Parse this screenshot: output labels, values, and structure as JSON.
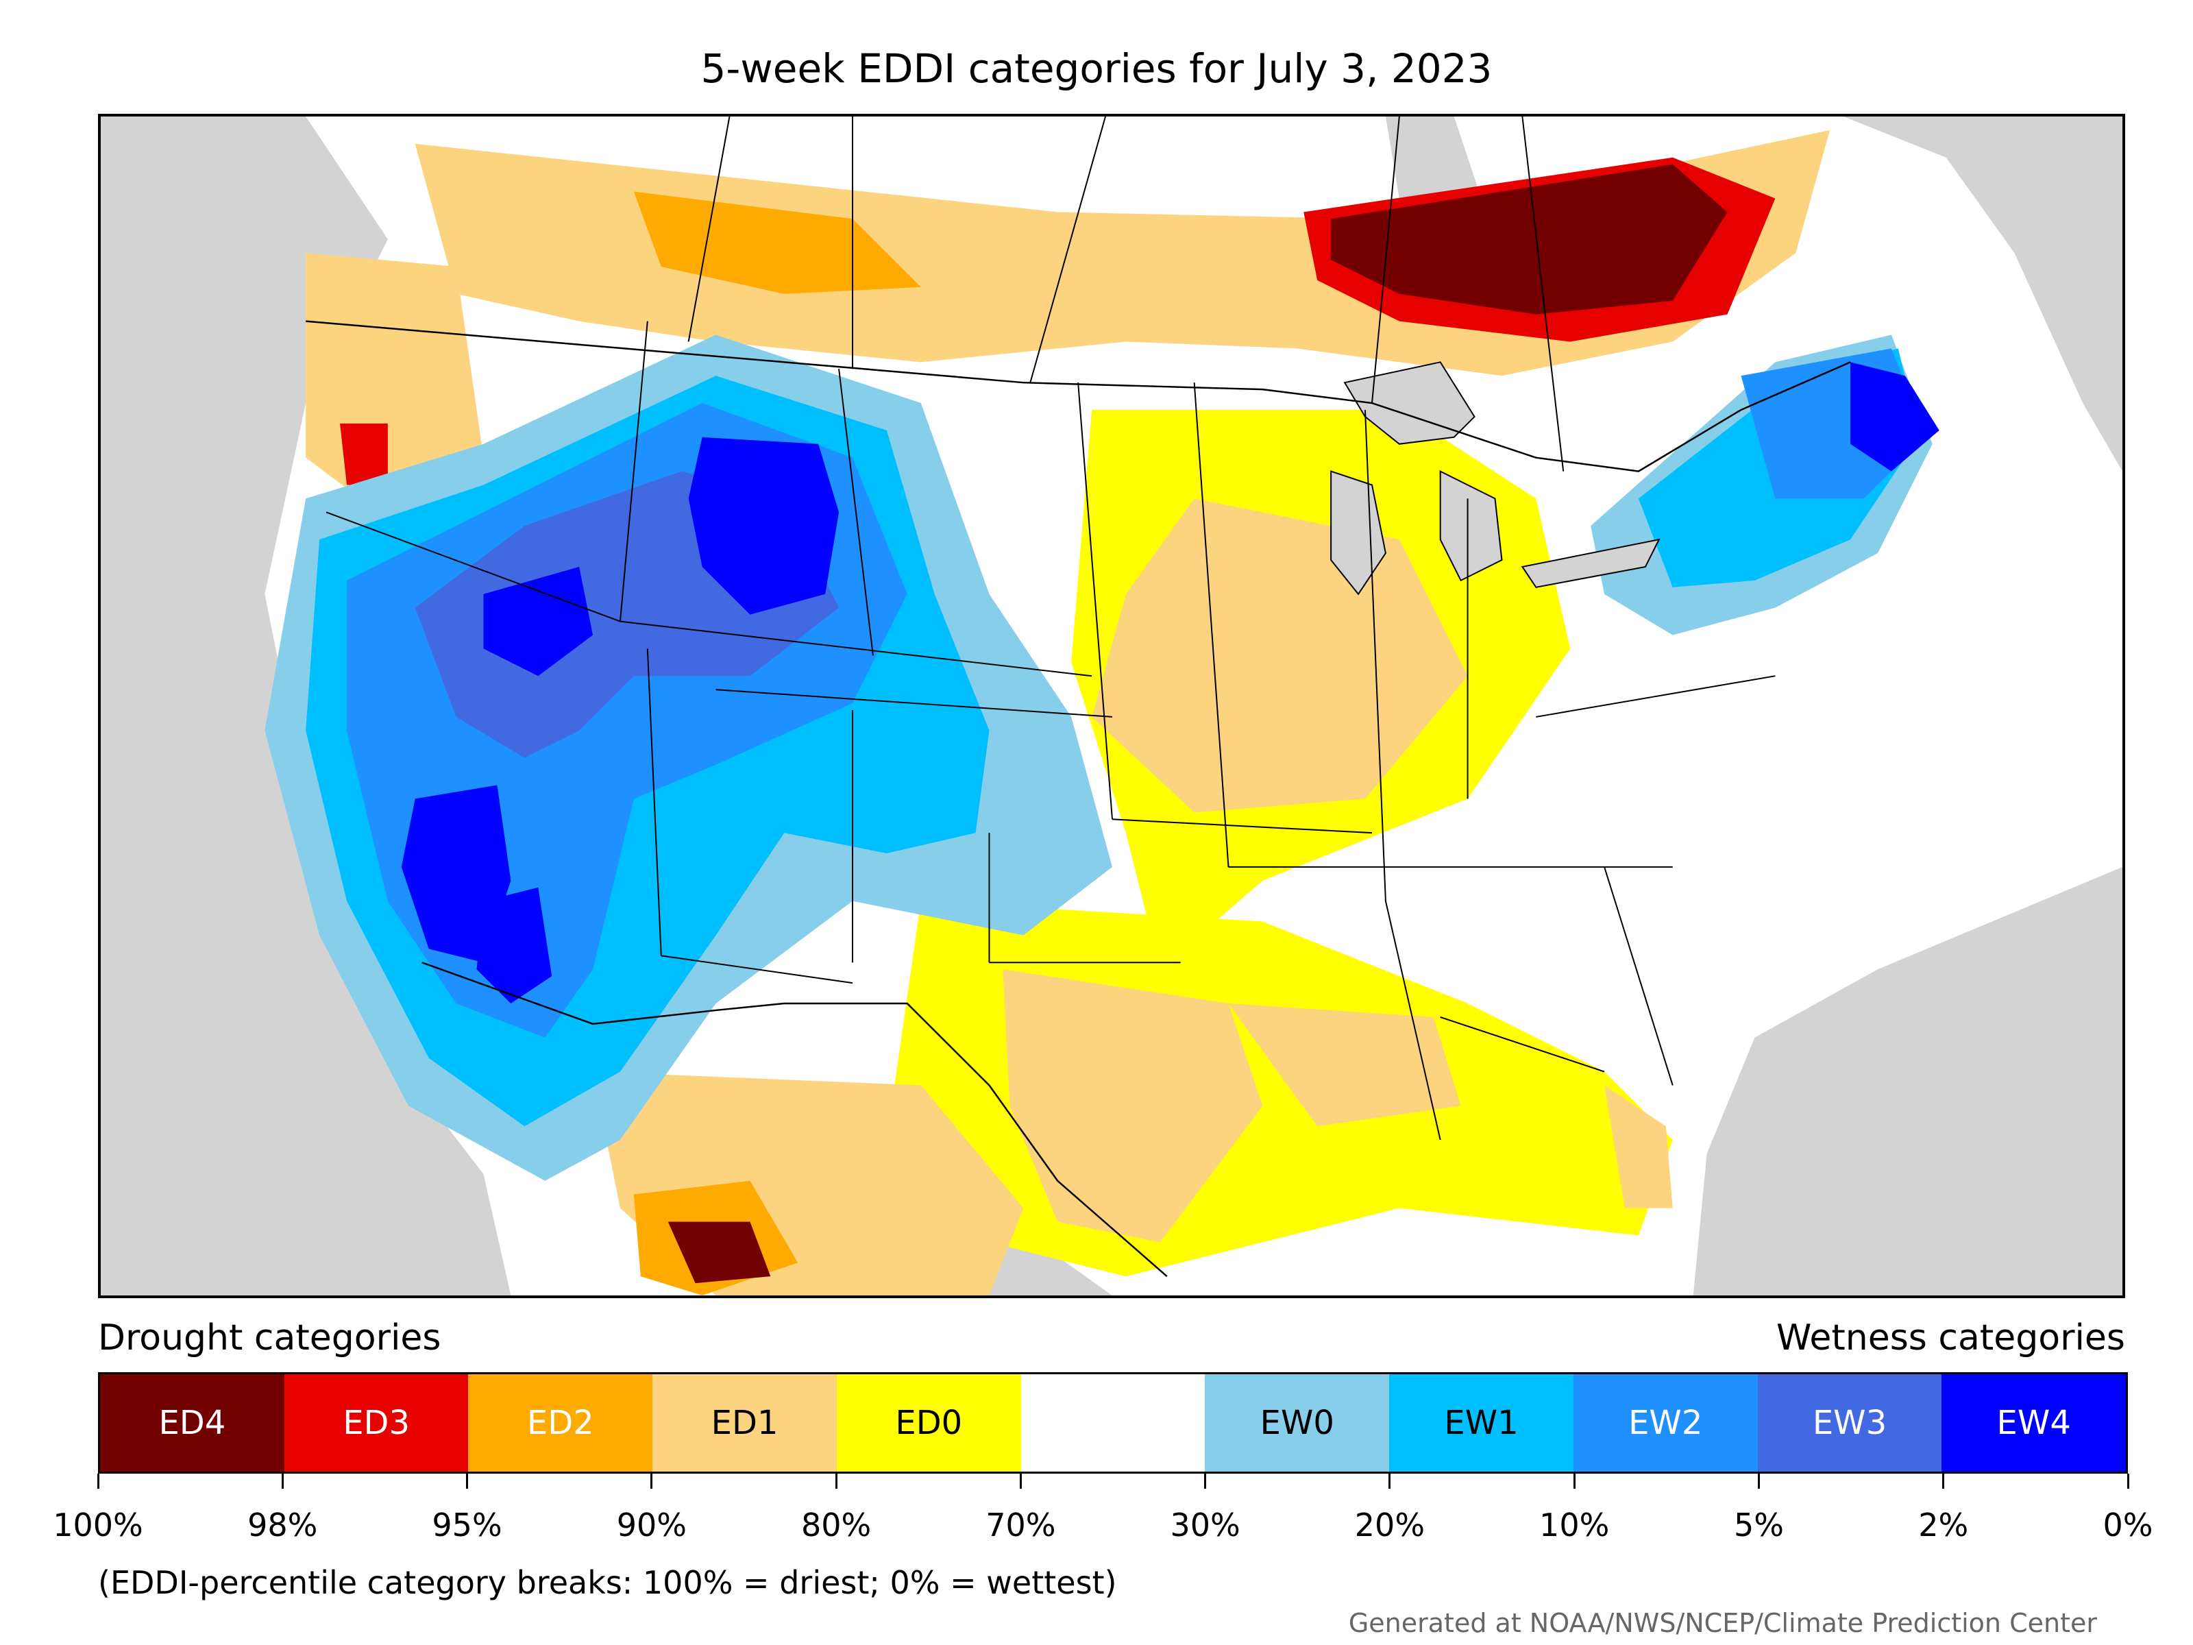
{
  "title": "5-week EDDI categories for July 3, 2023",
  "legend": {
    "drought_label": "Drought categories",
    "wetness_label": "Wetness categories",
    "categories": [
      {
        "label": "ED4",
        "color": "#730000",
        "text_color": "#ffffff"
      },
      {
        "label": "ED3",
        "color": "#e60000",
        "text_color": "#ffffff"
      },
      {
        "label": "ED2",
        "color": "#ffaa00",
        "text_color": "#ffffff"
      },
      {
        "label": "ED1",
        "color": "#fcd37f",
        "text_color": "#000000"
      },
      {
        "label": "ED0",
        "color": "#ffff00",
        "text_color": "#000000"
      },
      {
        "label": "",
        "color": "#ffffff",
        "text_color": "#000000"
      },
      {
        "label": "EW0",
        "color": "#87ceeb",
        "text_color": "#000000"
      },
      {
        "label": "EW1",
        "color": "#00bfff",
        "text_color": "#000000"
      },
      {
        "label": "EW2",
        "color": "#1e90ff",
        "text_color": "#ffffff"
      },
      {
        "label": "EW3",
        "color": "#4169e1",
        "text_color": "#ffffff"
      },
      {
        "label": "EW4",
        "color": "#0000ff",
        "text_color": "#ffffff"
      }
    ],
    "tick_labels": [
      "100%",
      "98%",
      "95%",
      "90%",
      "80%",
      "70%",
      "30%",
      "20%",
      "10%",
      "5%",
      "2%",
      "0%"
    ]
  },
  "footnote": "(EDDI-percentile category breaks: 100% = driest; 0% = wettest)",
  "credit": "Generated at NOAA/NWS/NCEP/Climate Prediction Center",
  "map": {
    "background_color": "#d3d3d3",
    "water_color": "#d3d3d3"
  }
}
